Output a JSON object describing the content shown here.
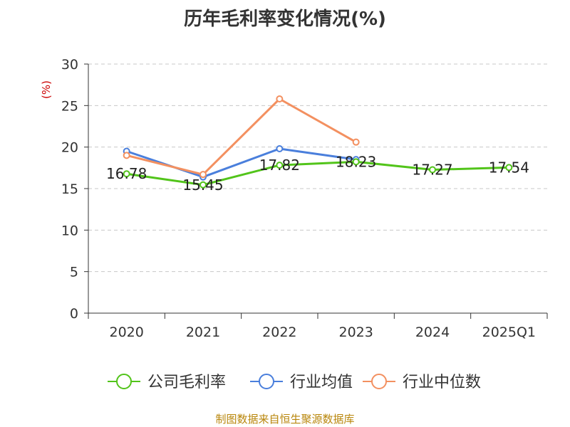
{
  "chart_data": {
    "type": "line",
    "title": "历年毛利率变化情况(%)",
    "ylabel": "(%)",
    "categories": [
      "2020",
      "2021",
      "2022",
      "2023",
      "2024",
      "2025Q1"
    ],
    "y_ticks": [
      "0",
      "5",
      "10",
      "15",
      "20",
      "25",
      "30"
    ],
    "ylim": [
      0,
      30
    ],
    "grid": true,
    "legend_position": "bottom",
    "series": [
      {
        "name": "公司毛利率",
        "color": "#52c41a",
        "values": [
          16.78,
          15.45,
          17.82,
          18.23,
          17.27,
          17.54
        ],
        "data_labels": [
          "16.78",
          "15.45",
          "17.82",
          "18.23",
          "17.27",
          "17.54"
        ]
      },
      {
        "name": "行业均值",
        "color": "#4a7fdc",
        "values": [
          19.5,
          16.4,
          19.8,
          18.5,
          null,
          null
        ]
      },
      {
        "name": "行业中位数",
        "color": "#f39060",
        "values": [
          19.0,
          16.7,
          25.8,
          20.6,
          null,
          null
        ]
      }
    ]
  },
  "source_note": "制图数据来自恒生聚源数据库"
}
